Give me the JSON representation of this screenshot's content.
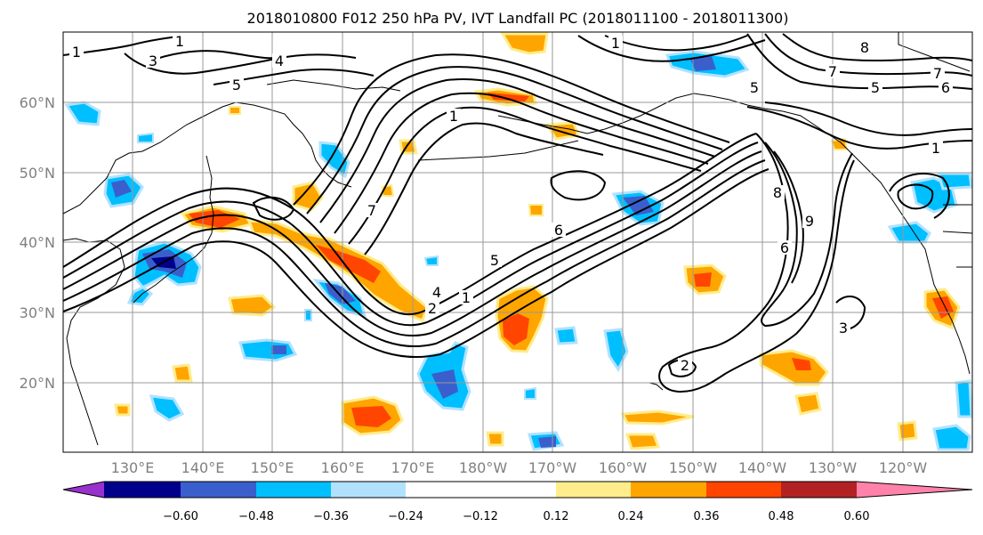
{
  "title": "2018010800 F012 250 hPa PV, IVT Landfall PC (2018011100 - 2018011300)",
  "map": {
    "lon_labels": [
      "130°E",
      "140°E",
      "150°E",
      "160°E",
      "170°E",
      "180°W",
      "170°W",
      "160°W",
      "150°W",
      "140°W",
      "130°W",
      "120°W"
    ],
    "lat_labels": [
      "60°N",
      "50°N",
      "40°N",
      "30°N",
      "20°N"
    ],
    "contour_labels": [
      "1",
      "3",
      "4",
      "5",
      "1",
      "1",
      "7",
      "5",
      "1",
      "4",
      "2",
      "1",
      "6",
      "5",
      "7",
      "8",
      "7",
      "6",
      "5",
      "8",
      "6",
      "9",
      "3",
      "2",
      "1"
    ],
    "colors": {
      "neg_060": "#9932cc",
      "neg_048": "#00008b",
      "neg_036": "#3a5fcd",
      "neg_024": "#00bfff",
      "neg_012": "#b0e2ff",
      "neutral": "#ffffff",
      "pos_012": "#ffec8b",
      "pos_024": "#ffa500",
      "pos_036": "#ff4500",
      "pos_048": "#b22222",
      "pos_060": "#ff82ab"
    }
  },
  "colorbar": {
    "ticks": [
      "−0.60",
      "−0.48",
      "−0.36",
      "−0.24",
      "−0.12",
      "0.12",
      "0.24",
      "0.36",
      "0.48",
      "0.60"
    ],
    "colors": [
      "#9932cc",
      "#00008b",
      "#3a5fcd",
      "#00bfff",
      "#b0e2ff",
      "#ffffff",
      "#ffec8b",
      "#ffa500",
      "#ff4500",
      "#b22222",
      "#ff82ab"
    ]
  }
}
